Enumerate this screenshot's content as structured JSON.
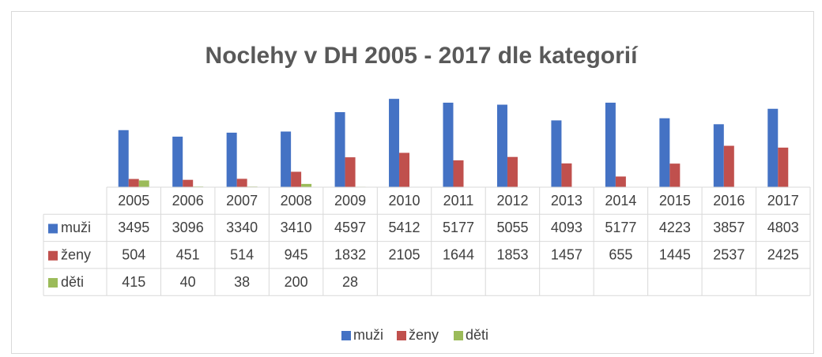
{
  "chart_data": {
    "type": "bar",
    "title": "Noclehy v DH 2005 - 2017 dle kategorií",
    "categories": [
      "2005",
      "2006",
      "2007",
      "2008",
      "2009",
      "2010",
      "2011",
      "2012",
      "2013",
      "2014",
      "2015",
      "2016",
      "2017"
    ],
    "series": [
      {
        "name": "muži",
        "color": "#4472c4",
        "values": [
          3495,
          3096,
          3340,
          3410,
          4597,
          5412,
          5177,
          5055,
          4093,
          5177,
          4223,
          3857,
          4803
        ]
      },
      {
        "name": "ženy",
        "color": "#c0504d",
        "values": [
          504,
          451,
          514,
          945,
          1832,
          2105,
          1644,
          1853,
          1457,
          655,
          1445,
          2537,
          2425
        ]
      },
      {
        "name": "děti",
        "color": "#9bbb59",
        "values": [
          415,
          40,
          38,
          200,
          28,
          null,
          null,
          null,
          null,
          null,
          null,
          null,
          null
        ]
      }
    ],
    "ylim": [
      0,
      6000
    ],
    "legend": "bottom"
  }
}
